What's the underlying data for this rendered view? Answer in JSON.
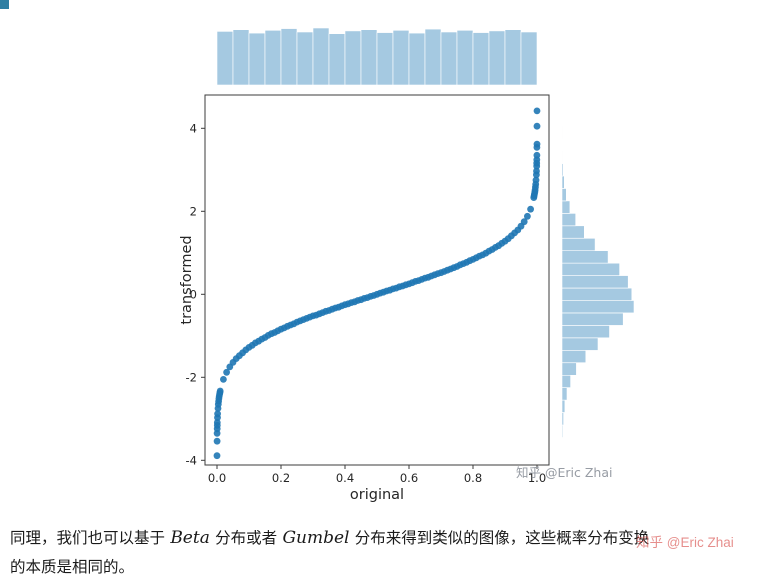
{
  "page": {
    "bg": "#ffffff"
  },
  "corner_artifact": {
    "color": "#2e7fa3"
  },
  "watermark": {
    "plot_text": "知乎 @Eric Zhai",
    "plot_color": "#979ca4",
    "caption_red_text": "知乎 @Eric Zhai",
    "red_color": "#d9534f"
  },
  "caption": {
    "line1_pre": "同理，我们也可以基于 ",
    "math1": "Beta",
    "line1_mid": " 分布或者 ",
    "math2": "Gumbel",
    "line1_post": " 分布来得到类似的图像，这些概率分布变换",
    "line2": "的本质是相同的。"
  },
  "chart_data": {
    "type": "scatter",
    "title": "",
    "xlabel": "original",
    "ylabel": "transformed",
    "xlim": [
      -0.04,
      1.04
    ],
    "ylim": [
      -4.2,
      4.8
    ],
    "grid": false,
    "x_ticks": [
      0.0,
      0.2,
      0.4,
      0.6,
      0.8,
      1.0
    ],
    "x_tick_labels": [
      "0.0",
      "0.2",
      "0.4",
      "0.6",
      "0.8",
      "1.0"
    ],
    "y_ticks": [
      -4,
      -2,
      0,
      2,
      4
    ],
    "y_tick_labels": [
      "-4",
      "-2",
      "0",
      "2",
      "4"
    ],
    "point_color": "#1f77b4",
    "hist_color": "#a5c9e1",
    "points": [
      [
        0.0,
        -3.89
      ],
      [
        0.0002,
        -3.54
      ],
      [
        0.0004,
        -3.35
      ],
      [
        0.0006,
        -3.24
      ],
      [
        0.0008,
        -3.16
      ],
      [
        0.001,
        -3.09
      ],
      [
        0.0015,
        -2.97
      ],
      [
        0.002,
        -2.88
      ],
      [
        0.003,
        -2.75
      ],
      [
        0.004,
        -2.65
      ],
      [
        0.005,
        -2.58
      ],
      [
        0.006,
        -2.51
      ],
      [
        0.007,
        -2.46
      ],
      [
        0.008,
        -2.41
      ],
      [
        0.009,
        -2.37
      ],
      [
        0.01,
        -2.33
      ],
      [
        0.02,
        -2.05
      ],
      [
        0.03,
        -1.88
      ],
      [
        0.04,
        -1.75
      ],
      [
        0.05,
        -1.64
      ],
      [
        0.06,
        -1.55
      ],
      [
        0.07,
        -1.48
      ],
      [
        0.08,
        -1.41
      ],
      [
        0.09,
        -1.34
      ],
      [
        0.1,
        -1.28
      ],
      [
        0.11,
        -1.23
      ],
      [
        0.12,
        -1.17
      ],
      [
        0.13,
        -1.13
      ],
      [
        0.14,
        -1.08
      ],
      [
        0.15,
        -1.04
      ],
      [
        0.16,
        -0.99
      ],
      [
        0.17,
        -0.95
      ],
      [
        0.18,
        -0.92
      ],
      [
        0.19,
        -0.88
      ],
      [
        0.2,
        -0.84
      ],
      [
        0.21,
        -0.81
      ],
      [
        0.22,
        -0.77
      ],
      [
        0.23,
        -0.74
      ],
      [
        0.24,
        -0.71
      ],
      [
        0.25,
        -0.67
      ],
      [
        0.26,
        -0.64
      ],
      [
        0.27,
        -0.61
      ],
      [
        0.28,
        -0.58
      ],
      [
        0.29,
        -0.55
      ],
      [
        0.3,
        -0.52
      ],
      [
        0.31,
        -0.5
      ],
      [
        0.32,
        -0.47
      ],
      [
        0.33,
        -0.44
      ],
      [
        0.34,
        -0.41
      ],
      [
        0.35,
        -0.39
      ],
      [
        0.36,
        -0.36
      ],
      [
        0.37,
        -0.33
      ],
      [
        0.38,
        -0.31
      ],
      [
        0.39,
        -0.28
      ],
      [
        0.4,
        -0.25
      ],
      [
        0.41,
        -0.23
      ],
      [
        0.42,
        -0.2
      ],
      [
        0.43,
        -0.18
      ],
      [
        0.44,
        -0.15
      ],
      [
        0.45,
        -0.13
      ],
      [
        0.46,
        -0.1
      ],
      [
        0.47,
        -0.08
      ],
      [
        0.48,
        -0.05
      ],
      [
        0.49,
        -0.03
      ],
      [
        0.5,
        0.0
      ],
      [
        0.51,
        0.03
      ],
      [
        0.52,
        0.05
      ],
      [
        0.53,
        0.08
      ],
      [
        0.54,
        0.1
      ],
      [
        0.55,
        0.13
      ],
      [
        0.56,
        0.15
      ],
      [
        0.57,
        0.18
      ],
      [
        0.58,
        0.2
      ],
      [
        0.59,
        0.23
      ],
      [
        0.6,
        0.25
      ],
      [
        0.61,
        0.28
      ],
      [
        0.62,
        0.31
      ],
      [
        0.63,
        0.33
      ],
      [
        0.64,
        0.36
      ],
      [
        0.65,
        0.39
      ],
      [
        0.66,
        0.41
      ],
      [
        0.67,
        0.44
      ],
      [
        0.68,
        0.47
      ],
      [
        0.69,
        0.5
      ],
      [
        0.7,
        0.52
      ],
      [
        0.71,
        0.55
      ],
      [
        0.72,
        0.58
      ],
      [
        0.73,
        0.61
      ],
      [
        0.74,
        0.64
      ],
      [
        0.75,
        0.67
      ],
      [
        0.76,
        0.71
      ],
      [
        0.77,
        0.74
      ],
      [
        0.78,
        0.77
      ],
      [
        0.79,
        0.81
      ],
      [
        0.8,
        0.84
      ],
      [
        0.81,
        0.88
      ],
      [
        0.82,
        0.92
      ],
      [
        0.83,
        0.95
      ],
      [
        0.84,
        0.99
      ],
      [
        0.85,
        1.04
      ],
      [
        0.86,
        1.08
      ],
      [
        0.87,
        1.13
      ],
      [
        0.88,
        1.17
      ],
      [
        0.89,
        1.23
      ],
      [
        0.9,
        1.28
      ],
      [
        0.91,
        1.34
      ],
      [
        0.92,
        1.41
      ],
      [
        0.93,
        1.48
      ],
      [
        0.94,
        1.55
      ],
      [
        0.95,
        1.64
      ],
      [
        0.96,
        1.75
      ],
      [
        0.97,
        1.88
      ],
      [
        0.98,
        2.05
      ],
      [
        0.99,
        2.33
      ],
      [
        0.991,
        2.37
      ],
      [
        0.992,
        2.41
      ],
      [
        0.993,
        2.46
      ],
      [
        0.994,
        2.51
      ],
      [
        0.995,
        2.58
      ],
      [
        0.996,
        2.65
      ],
      [
        0.997,
        2.75
      ],
      [
        0.998,
        2.88
      ],
      [
        0.9985,
        2.97
      ],
      [
        0.999,
        3.09
      ],
      [
        0.9992,
        3.16
      ],
      [
        0.9994,
        3.24
      ],
      [
        0.9996,
        3.35
      ],
      [
        0.9998,
        3.54
      ],
      [
        0.99988,
        3.62
      ],
      [
        0.99995,
        4.05
      ],
      [
        0.99998,
        4.42
      ]
    ],
    "marginal_top": {
      "type": "hist",
      "bin_start": 0.0,
      "bin_width": 0.05,
      "rel_heights": [
        0.94,
        0.97,
        0.91,
        0.96,
        0.99,
        0.93,
        1.0,
        0.9,
        0.95,
        0.97,
        0.92,
        0.96,
        0.91,
        0.98,
        0.93,
        0.96,
        0.92,
        0.95,
        0.97,
        0.93
      ]
    },
    "marginal_right": {
      "type": "hist",
      "bin_start": -4.05,
      "bin_width": 0.3,
      "rel_heights": [
        0.004,
        0.007,
        0.012,
        0.022,
        0.04,
        0.07,
        0.12,
        0.2,
        0.33,
        0.5,
        0.66,
        0.85,
        1.0,
        0.97,
        0.92,
        0.8,
        0.64,
        0.46,
        0.31,
        0.19,
        0.11,
        0.06,
        0.032,
        0.016,
        0.008,
        0.004,
        0.002,
        0.003
      ]
    }
  }
}
